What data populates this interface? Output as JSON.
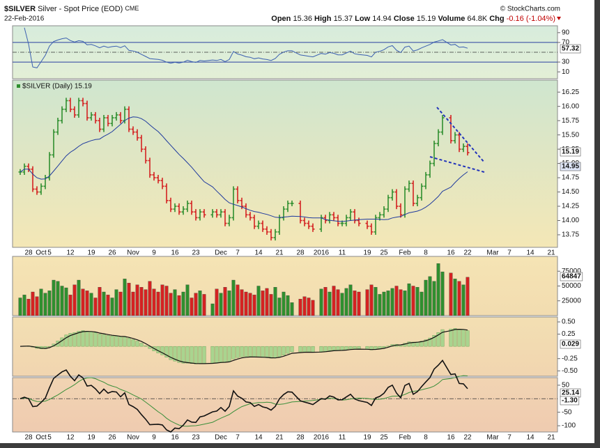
{
  "header": {
    "symbol": "$SILVER",
    "name": "Silver - Spot Price (EOD)",
    "exchange": "CME",
    "date": "22-Feb-2016",
    "credit": "© StockCharts.com",
    "stats": [
      {
        "label": "Open",
        "value": "15.36"
      },
      {
        "label": "High",
        "value": "15.37"
      },
      {
        "label": "Low",
        "value": "14.94"
      },
      {
        "label": "Close",
        "value": "15.19"
      },
      {
        "label": "Volume",
        "value": "64.8K"
      },
      {
        "label": "Chg",
        "value": "-0.16 (-1.04%)"
      }
    ]
  },
  "chart_data": [
    {
      "type": "price",
      "legend": "$SILVER (Daily) 15.19",
      "annotation": "SILVER",
      "up_color": "#2f8f2f",
      "down_color": "#d42222",
      "ma_color": "#1f3a9e",
      "last_label": "15.19",
      "ma_label": "14.95",
      "categories": [
        null,
        null,
        "28",
        null,
        null,
        "Oct",
        null,
        "5",
        null,
        null,
        null,
        null,
        "12",
        null,
        null,
        null,
        null,
        "19",
        null,
        null,
        null,
        null,
        "26",
        null,
        null,
        null,
        null,
        "Nov",
        null,
        null,
        null,
        null,
        "9",
        null,
        null,
        null,
        null,
        "16",
        null,
        null,
        null,
        null,
        "23",
        null,
        null,
        null,
        null,
        null,
        "Dec",
        null,
        null,
        null,
        "7",
        null,
        null,
        null,
        null,
        "14",
        null,
        null,
        null,
        null,
        "21",
        null,
        null,
        null,
        null,
        "28",
        null,
        null,
        null,
        null,
        "2016",
        null,
        null,
        null,
        null,
        "11",
        null,
        null,
        null,
        null,
        null,
        "19",
        null,
        null,
        null,
        "25",
        null,
        null,
        null,
        null,
        "Feb",
        null,
        null,
        null,
        null,
        "8",
        null,
        null,
        null,
        null,
        null,
        "16",
        null,
        null,
        null,
        "22",
        null,
        null,
        null,
        null,
        null,
        "Mar",
        null,
        null,
        null,
        "7",
        null,
        null,
        null,
        null,
        "14",
        null,
        null,
        null,
        null,
        "21"
      ],
      "values": [
        14.85,
        14.95,
        14.9,
        14.55,
        14.5,
        14.6,
        14.75,
        15.15,
        15.55,
        15.75,
        15.95,
        16.1,
        15.95,
        15.85,
        16.1,
        16.05,
        15.8,
        15.85,
        15.75,
        15.6,
        15.8,
        15.7,
        15.8,
        15.85,
        15.75,
        15.95,
        15.6,
        15.55,
        15.45,
        15.25,
        15.05,
        14.8,
        14.75,
        14.7,
        14.6,
        14.35,
        14.2,
        14.25,
        14.15,
        14.2,
        14.3,
        14.15,
        14.05,
        14.15,
        14.1,
        null,
        14.15,
        14.1,
        14.15,
        13.95,
        14.05,
        14.55,
        14.35,
        14.25,
        14.1,
        14.05,
        13.9,
        13.95,
        13.85,
        13.8,
        13.7,
        13.8,
        14.05,
        14.2,
        14.3,
        14.3,
        null,
        14.0,
        13.95,
        13.9,
        13.85,
        null,
        14.05,
        14.0,
        14.1,
        14.05,
        13.95,
        13.95,
        14.05,
        14.15,
        14.0,
        13.95,
        null,
        13.9,
        13.8,
        14.05,
        14.1,
        14.2,
        14.4,
        14.5,
        14.25,
        14.1,
        14.55,
        14.65,
        14.3,
        14.4,
        14.6,
        14.8,
        15.0,
        15.35,
        15.55,
        15.8,
        null,
        15.4,
        15.5,
        15.25,
        15.3,
        15.19,
        null,
        null,
        null,
        null,
        null,
        null,
        null,
        null,
        null,
        null,
        null,
        null,
        null,
        null,
        null,
        null,
        null,
        null,
        null,
        null
      ],
      "ylim": [
        13.53,
        16.46
      ],
      "yticks": [
        13.75,
        {
          "value": 14,
          "label": "14.00"
        },
        14.25,
        {
          "value": 14.5,
          "label": "14.50"
        },
        14.75,
        {
          "value": 15,
          "label": "15.00"
        },
        15.25,
        {
          "value": 15.5,
          "label": "15.50"
        },
        15.75,
        {
          "value": 16,
          "label": "16.00"
        },
        16.25
      ]
    },
    {
      "type": "volume",
      "last_label": "64847",
      "values": [
        30000,
        35000,
        28000,
        40000,
        32000,
        45000,
        38000,
        42000,
        60000,
        58000,
        50000,
        47000,
        35000,
        52000,
        60000,
        45000,
        42000,
        38000,
        30000,
        48000,
        40000,
        35000,
        30000,
        44000,
        40000,
        62000,
        55000,
        40000,
        52000,
        48000,
        44000,
        58000,
        45000,
        40000,
        52000,
        50000,
        38000,
        44000,
        34000,
        40000,
        52000,
        30000,
        38000,
        42000,
        36000,
        null,
        20000,
        45000,
        38000,
        48000,
        42000,
        60000,
        52000,
        44000,
        40000,
        38000,
        35000,
        50000,
        42000,
        46000,
        36000,
        48000,
        30000,
        40000,
        34000,
        22000,
        null,
        28000,
        32000,
        30000,
        26000,
        null,
        45000,
        48000,
        40000,
        50000,
        44000,
        38000,
        46000,
        52000,
        42000,
        40000,
        null,
        44000,
        52000,
        48000,
        36000,
        40000,
        42000,
        46000,
        50000,
        44000,
        42000,
        54000,
        50000,
        48000,
        40000,
        60000,
        66000,
        58000,
        88000,
        74000,
        null,
        72000,
        62000,
        58000,
        52000,
        64847,
        null,
        null,
        null,
        null,
        null,
        null,
        null,
        null,
        null,
        null,
        null,
        null,
        null,
        null,
        null,
        null,
        null,
        null,
        null,
        null
      ],
      "ylim": [
        0,
        100000
      ],
      "yticks": [
        25000,
        50000,
        75000
      ]
    },
    {
      "type": "rsi",
      "last_label": "57.32",
      "color": "#3a5fb0",
      "ylim": [
        -4,
        104
      ],
      "yticks": [
        10,
        30,
        70,
        90
      ],
      "reference_lines": [
        70,
        30
      ],
      "midline": 50
    },
    {
      "type": "macd",
      "last_label": "0.029",
      "ylim": [
        -0.61,
        0.6
      ],
      "yticks": [
        {
          "value": 0.5,
          "label": "0.50"
        },
        0.25,
        -0.25,
        {
          "value": -0.5,
          "label": "-0.50"
        }
      ]
    },
    {
      "type": "oscillator",
      "last_labels": [
        "25.14",
        "-1.30"
      ],
      "ylim": [
        -123,
        78
      ],
      "yticks": [
        50,
        -50,
        -100
      ]
    }
  ]
}
